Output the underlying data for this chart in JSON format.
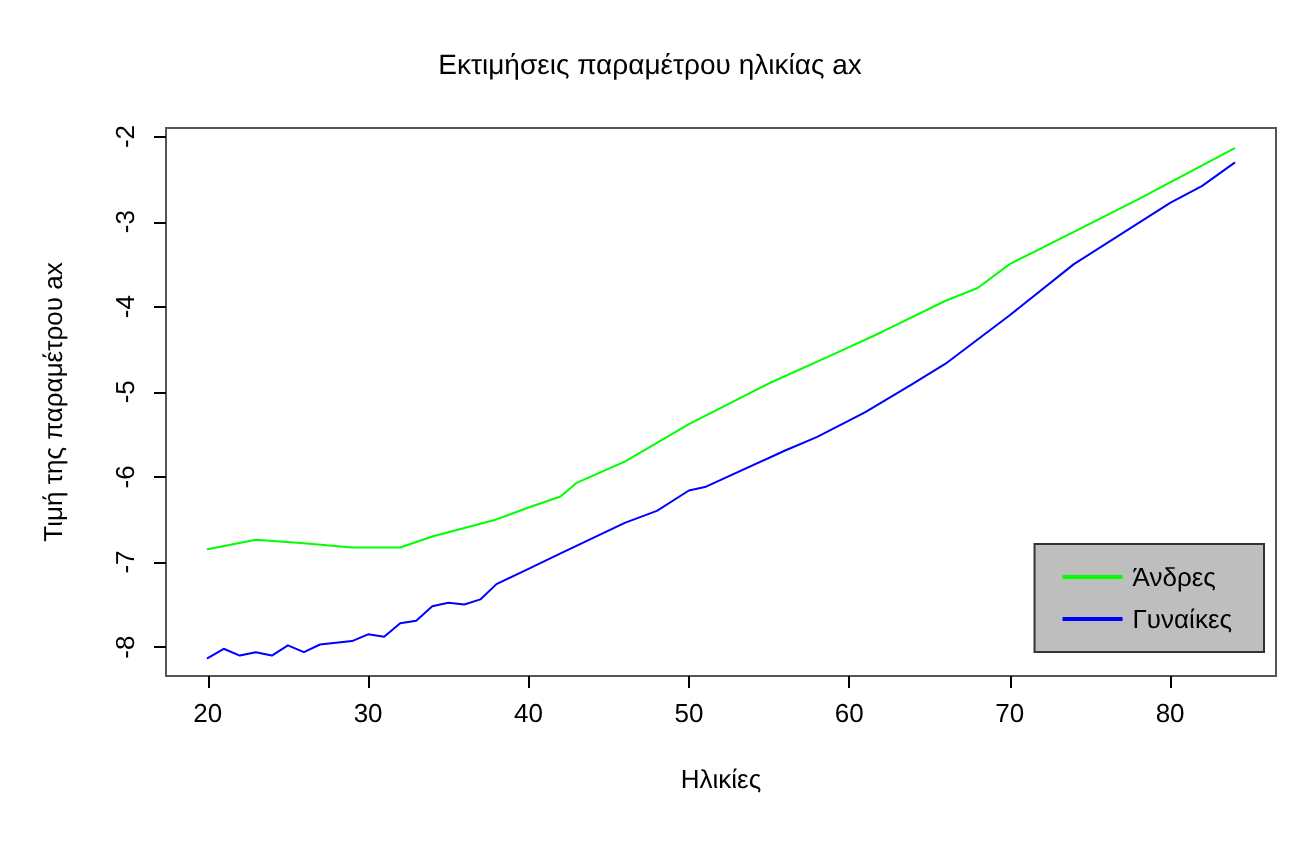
{
  "chart_data": {
    "type": "line",
    "title": "Εκτιμήσεις παραμέτρου ηλικίας ax",
    "xlabel": "Ηλικίες",
    "ylabel": "Τιμή της παραμέτρου ax",
    "xlim": [
      17.4,
      86.6
    ],
    "xticks": [
      20,
      30,
      40,
      50,
      60,
      70,
      80
    ],
    "ylim": [
      -8.34,
      -1.9
    ],
    "yticks": [
      -8,
      -7,
      -6,
      -5,
      -4,
      -3,
      -2
    ],
    "grid": false,
    "legend": "bottom right",
    "marker": "none",
    "line_style": "solid",
    "series": [
      {
        "name": "Άνδρες",
        "color": "#00ff00",
        "x": [
          20,
          23,
          26,
          29,
          32,
          34,
          36,
          38,
          40,
          42,
          43,
          46,
          50,
          55,
          59,
          62,
          66,
          68,
          70,
          74,
          78,
          80,
          84
        ],
        "values": [
          -6.85,
          -6.74,
          -6.78,
          -6.83,
          -6.83,
          -6.7,
          -6.6,
          -6.5,
          -6.36,
          -6.23,
          -6.07,
          -5.82,
          -5.38,
          -4.9,
          -4.56,
          -4.3,
          -3.93,
          -3.78,
          -3.5,
          -3.12,
          -2.74,
          -2.54,
          -2.14
        ]
      },
      {
        "name": "Γυναίκες",
        "color": "#0000ff",
        "x": [
          20,
          21,
          22,
          23,
          24,
          25,
          26,
          27,
          29,
          30,
          31,
          32,
          33,
          34,
          35,
          36,
          37,
          38,
          40,
          42,
          46,
          48,
          50,
          51,
          56,
          58,
          61,
          64,
          66,
          70,
          74,
          80,
          82,
          84
        ],
        "values": [
          -8.13,
          -8.02,
          -8.1,
          -8.06,
          -8.1,
          -7.98,
          -8.06,
          -7.97,
          -7.93,
          -7.85,
          -7.88,
          -7.72,
          -7.69,
          -7.52,
          -7.48,
          -7.5,
          -7.44,
          -7.26,
          -7.08,
          -6.9,
          -6.54,
          -6.4,
          -6.16,
          -6.12,
          -5.69,
          -5.53,
          -5.24,
          -4.9,
          -4.67,
          -4.1,
          -3.5,
          -2.78,
          -2.58,
          -2.31
        ]
      }
    ]
  }
}
